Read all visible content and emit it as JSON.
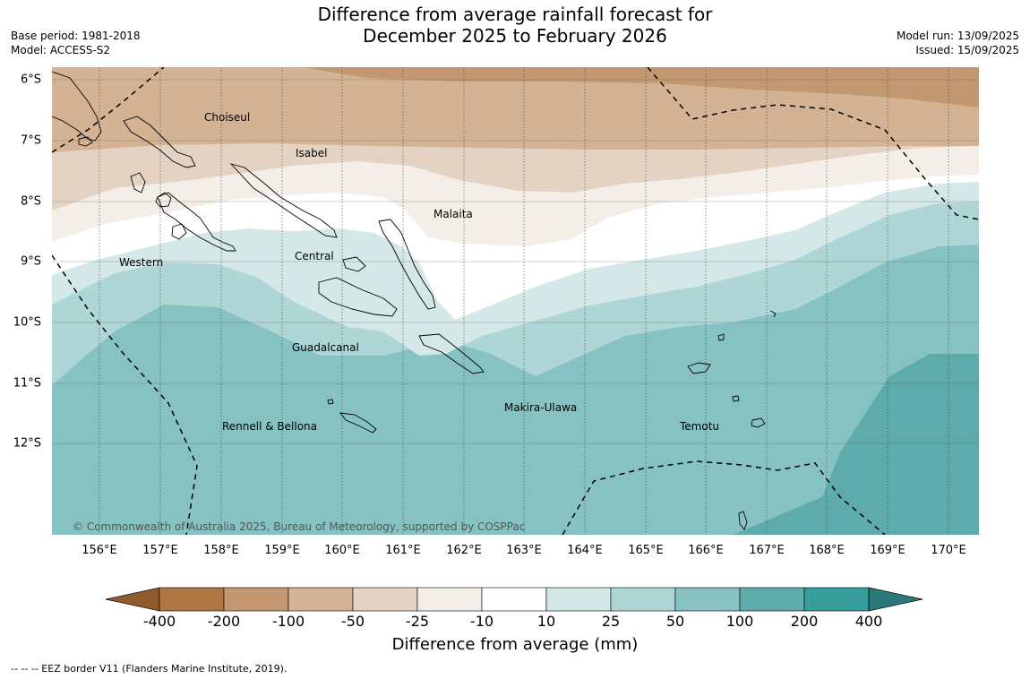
{
  "title_line1": "Difference from average rainfall forecast for",
  "title_line2": "December 2025 to February 2026",
  "meta_left": {
    "base_period": "Base period: 1981-2018",
    "model": "Model: ACCESS-S2"
  },
  "meta_right": {
    "model_run": "Model run: 13/09/2025",
    "issued": "Issued: 15/09/2025"
  },
  "regions": {
    "choiseul": "Choiseul",
    "isabel": "Isabel",
    "malaita": "Malaita",
    "western": "Western",
    "central": "Central",
    "guadalcanal": "Guadalcanal",
    "makira": "Makira-Ulawa",
    "temotu": "Temotu",
    "rennell": "Rennell & Bellona"
  },
  "copyright": "© Commonwealth of Australia 2025, Bureau of Meteorology, supported by COSPPac",
  "lat_labels": [
    "6°S",
    "7°S",
    "8°S",
    "9°S",
    "10°S",
    "11°S",
    "12°S"
  ],
  "lon_labels": [
    "156°E",
    "157°E",
    "158°E",
    "159°E",
    "160°E",
    "161°E",
    "162°E",
    "163°E",
    "164°E",
    "165°E",
    "166°E",
    "167°E",
    "168°E",
    "169°E",
    "170°E"
  ],
  "colorbar": {
    "ticks": [
      "-400",
      "-200",
      "-100",
      "-50",
      "-25",
      "-10",
      "10",
      "25",
      "50",
      "100",
      "200",
      "400"
    ],
    "colors": [
      "#8f5a2c",
      "#ad7642",
      "#c29871",
      "#d4b394",
      "#e4d3c3",
      "#f3eee8",
      "#ffffff",
      "#d5e8e8",
      "#afd6d6",
      "#87c2c2",
      "#5eabab",
      "#389d9d",
      "#2b7878"
    ],
    "title": "Difference from average (mm)"
  },
  "footer": "-- -- -- EEZ border V11 (Flanders Marine Institute, 2019)."
}
